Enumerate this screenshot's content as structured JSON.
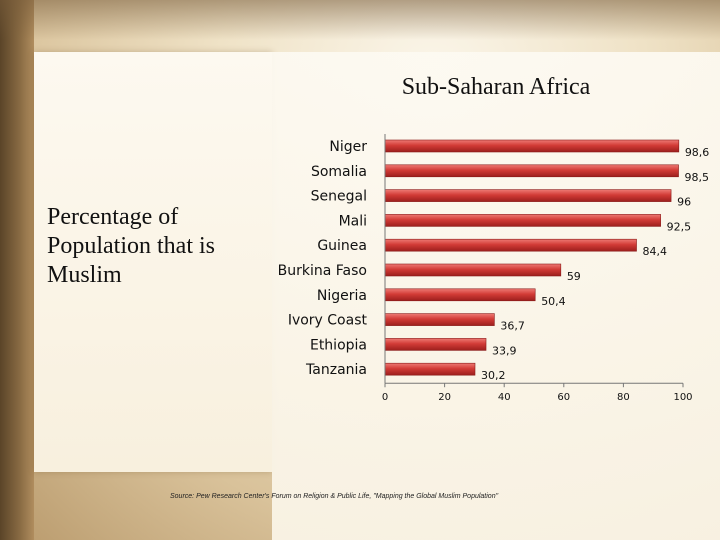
{
  "slide": {
    "title": "Sub-Saharan Africa",
    "side_text": "Percentage of Population that is Muslim",
    "source": "Source: Pew Research Center's Forum on Religion & Public Life, \"Mapping the Global Muslim Population\""
  },
  "chart_data": {
    "type": "bar",
    "orientation": "horizontal",
    "categories": [
      "Niger",
      "Somalia",
      "Senegal",
      "Mali",
      "Guinea",
      "Burkina Faso",
      "Nigeria",
      "Ivory Coast",
      "Ethiopia",
      "Tanzania"
    ],
    "values": [
      98.6,
      98.5,
      96,
      92.5,
      84.4,
      59,
      50.4,
      36.7,
      33.9,
      30.2
    ],
    "value_labels": [
      "98,6",
      "98,5",
      "96",
      "92,5",
      "84,4",
      "59",
      "50,4",
      "36,7",
      "33,9",
      "30,2"
    ],
    "xticks": [
      0,
      20,
      40,
      60,
      80,
      100
    ],
    "xlim": [
      0,
      100
    ],
    "grid": false,
    "bar_color": "#c8322f"
  }
}
